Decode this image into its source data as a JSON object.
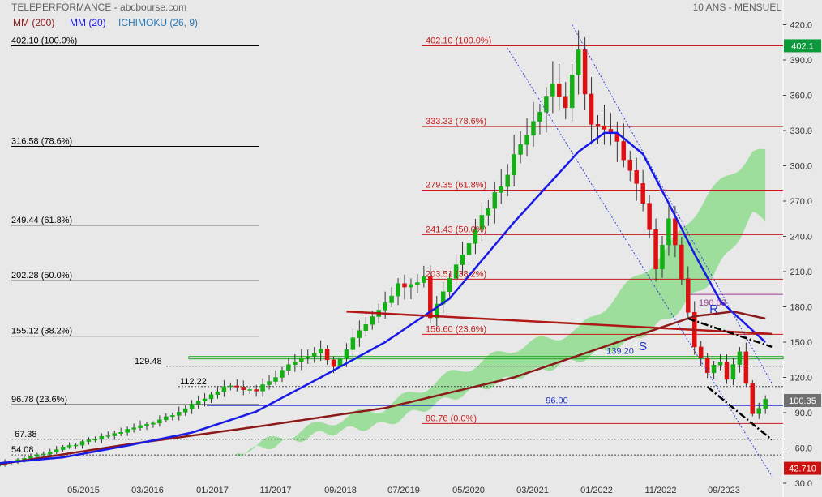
{
  "header": {
    "instrument": "TELEPERFORMANCE - abcbourse.com",
    "period": "10 ANS - MENSUEL",
    "legend": [
      {
        "label": "MM (200)",
        "color": "#8b1a1a"
      },
      {
        "label": "MM (20)",
        "color": "#1a1ae6"
      },
      {
        "label": "ICHIMOKU (26, 9)",
        "color": "#2a7ab8"
      }
    ]
  },
  "chart_data": {
    "type": "candlestick",
    "title": "TELEPERFORMANCE",
    "xlabel": "",
    "ylabel": "",
    "ylim": [
      30,
      430
    ],
    "y_ticks": [
      30,
      60,
      90,
      120,
      150,
      180,
      210,
      240,
      270,
      300,
      330,
      360,
      390,
      420
    ],
    "x_ticks": [
      "05/2015",
      "03/2016",
      "01/2017",
      "11/2017",
      "09/2018",
      "07/2019",
      "05/2020",
      "03/2021",
      "01/2022",
      "11/2022",
      "09/2023"
    ],
    "x_range_months": [
      "2014-09",
      "2024-02"
    ],
    "grid": false,
    "price_anchors": [
      {
        "month": 0,
        "price": 46
      },
      {
        "month": 6,
        "price": 54
      },
      {
        "month": 12,
        "price": 63
      },
      {
        "month": 18,
        "price": 72
      },
      {
        "month": 24,
        "price": 82
      },
      {
        "month": 30,
        "price": 96
      },
      {
        "month": 35,
        "price": 112
      },
      {
        "month": 40,
        "price": 108
      },
      {
        "month": 46,
        "price": 134
      },
      {
        "month": 50,
        "price": 145
      },
      {
        "month": 52,
        "price": 128
      },
      {
        "month": 56,
        "price": 160
      },
      {
        "month": 62,
        "price": 198
      },
      {
        "month": 66,
        "price": 205
      },
      {
        "month": 67,
        "price": 172
      },
      {
        "month": 70,
        "price": 205
      },
      {
        "month": 74,
        "price": 248
      },
      {
        "month": 78,
        "price": 285
      },
      {
        "month": 82,
        "price": 330
      },
      {
        "month": 86,
        "price": 370
      },
      {
        "month": 88,
        "price": 350
      },
      {
        "month": 90,
        "price": 395
      },
      {
        "month": 92,
        "price": 335
      },
      {
        "month": 95,
        "price": 325
      },
      {
        "month": 98,
        "price": 300
      },
      {
        "month": 100,
        "price": 270
      },
      {
        "month": 102,
        "price": 215
      },
      {
        "month": 104,
        "price": 255
      },
      {
        "month": 106,
        "price": 205
      },
      {
        "month": 108,
        "price": 145
      },
      {
        "month": 110,
        "price": 125
      },
      {
        "month": 112,
        "price": 135
      },
      {
        "month": 113,
        "price": 120
      },
      {
        "month": 115,
        "price": 142
      },
      {
        "month": 117,
        "price": 88
      },
      {
        "month": 119,
        "price": 100
      }
    ],
    "series": [
      {
        "name": "MM (200)",
        "values": [
          [
            0,
            46
          ],
          [
            20,
            63
          ],
          [
            40,
            78
          ],
          [
            60,
            94
          ],
          [
            80,
            120
          ],
          [
            95,
            148
          ],
          [
            108,
            172
          ],
          [
            114,
            176
          ],
          [
            119,
            170
          ]
        ]
      },
      {
        "name": "MM (20)",
        "values": [
          [
            0,
            47
          ],
          [
            10,
            52
          ],
          [
            20,
            62
          ],
          [
            30,
            73
          ],
          [
            40,
            91
          ],
          [
            50,
            120
          ],
          [
            60,
            150
          ],
          [
            70,
            187
          ],
          [
            80,
            252
          ],
          [
            90,
            312
          ],
          [
            94,
            328
          ],
          [
            96,
            328
          ],
          [
            100,
            310
          ],
          [
            104,
            268
          ],
          [
            108,
            225
          ],
          [
            112,
            185
          ],
          [
            116,
            165
          ],
          [
            119,
            150
          ]
        ]
      },
      {
        "name": "ICHIMOKU (26, 9)",
        "values": [
          [
            37,
            55,
            57
          ],
          [
            50,
            72,
            80
          ],
          [
            60,
            80,
            95
          ],
          [
            70,
            102,
            122
          ],
          [
            80,
            120,
            145
          ],
          [
            90,
            135,
            160
          ],
          [
            98,
            150,
            200
          ],
          [
            104,
            170,
            230
          ],
          [
            110,
            200,
            275
          ],
          [
            115,
            240,
            300
          ],
          [
            117,
            258,
            312
          ],
          [
            119,
            255,
            310
          ]
        ]
      }
    ],
    "fib_left": [
      {
        "label": "402.10  (100.0%)",
        "value": 402.1
      },
      {
        "label": "316.58  (78.6%)",
        "value": 316.58
      },
      {
        "label": "249.44  (61.8%)",
        "value": 249.44
      },
      {
        "label": "202.28  (50.0%)",
        "value": 202.28
      },
      {
        "label": "155.12  (38.2%)",
        "value": 155.12
      },
      {
        "label": "96.78  (23.6%)",
        "value": 96.78
      },
      {
        "label": "54.08",
        "value": 54.08
      }
    ],
    "fib_right": [
      {
        "label": "402.10  (100.0%)",
        "value": 402.1
      },
      {
        "label": "333.33  (78.6%)",
        "value": 333.33
      },
      {
        "label": "279.35  (61.8%)",
        "value": 279.35
      },
      {
        "label": "241.43  (50.0%)",
        "value": 241.43
      },
      {
        "label": "203.51  (38.2%)",
        "value": 203.51
      },
      {
        "label": "156.60  (23.6%)",
        "value": 156.6
      },
      {
        "label": "80.76  (0.0%)",
        "value": 80.76
      }
    ],
    "dotted_levels": [
      {
        "label": "129.48",
        "value": 129.48
      },
      {
        "label": "112.22",
        "value": 112.22
      },
      {
        "label": "67.38",
        "value": 67.38
      },
      {
        "label": "",
        "value": 54.08
      }
    ],
    "horizontal_lines": [
      {
        "label": "139.20",
        "value": 139.2
      },
      {
        "label": "96.00",
        "value": 96.0
      },
      {
        "label": "190.63",
        "value": 190.63
      }
    ],
    "annotations": [
      {
        "text": "S",
        "month": 100,
        "value": 143
      },
      {
        "text": "R",
        "month": 111,
        "value": 175
      }
    ],
    "price_tags": [
      {
        "label": "402.1",
        "value": 402.1,
        "color": "#0a9a3a"
      },
      {
        "label": "100.35",
        "value": 100.35,
        "color": "#707070"
      },
      {
        "label": "42.710",
        "value": 42.71,
        "color": "#cc1111"
      }
    ]
  }
}
